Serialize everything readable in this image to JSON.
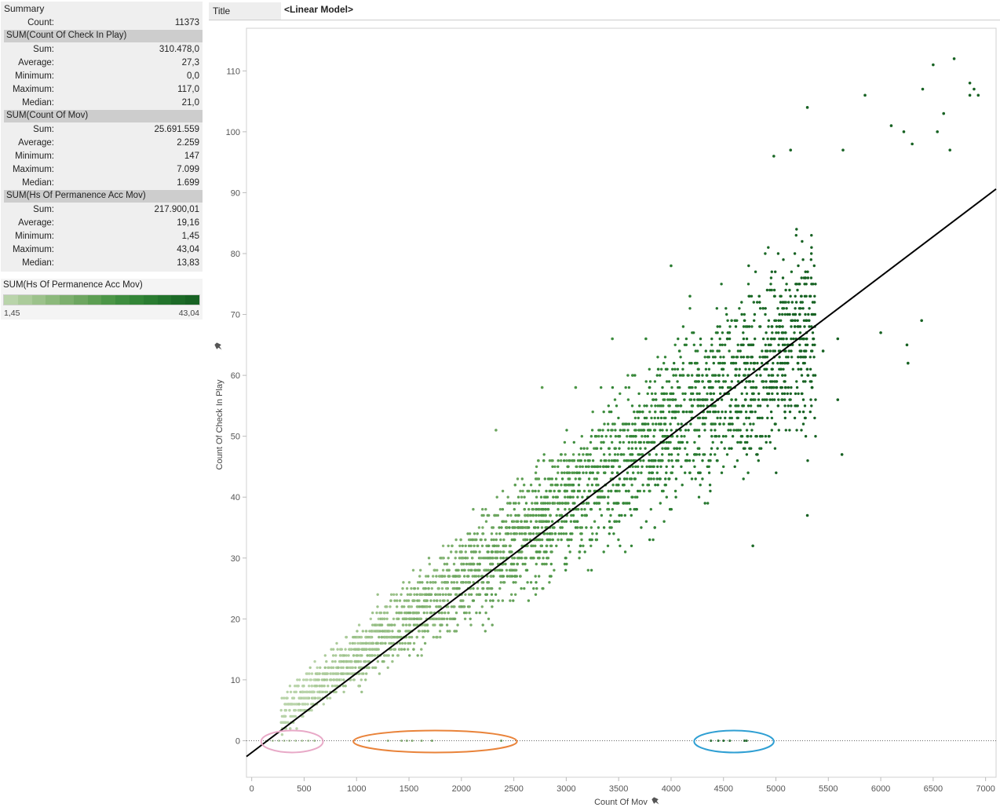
{
  "summary": {
    "title": "Summary",
    "count_label": "Count:",
    "count_value": "11373",
    "sections": [
      {
        "header": "SUM(Count Of Check In Play)",
        "rows": [
          [
            "Sum:",
            "310.478,0"
          ],
          [
            "Average:",
            "27,3"
          ],
          [
            "Minimum:",
            "0,0"
          ],
          [
            "Maximum:",
            "117,0"
          ],
          [
            "Median:",
            "21,0"
          ]
        ]
      },
      {
        "header": "SUM(Count Of Mov)",
        "rows": [
          [
            "Sum:",
            "25.691.559"
          ],
          [
            "Average:",
            "2.259"
          ],
          [
            "Minimum:",
            "147"
          ],
          [
            "Maximum:",
            "7.099"
          ],
          [
            "Median:",
            "1.699"
          ]
        ]
      },
      {
        "header": "SUM(Hs Of Permanence Acc Mov)",
        "rows": [
          [
            "Sum:",
            "217.900,01"
          ],
          [
            "Average:",
            "19,16"
          ],
          [
            "Minimum:",
            "1,45"
          ],
          [
            "Maximum:",
            "43,04"
          ],
          [
            "Median:",
            "13,83"
          ]
        ]
      }
    ]
  },
  "legend": {
    "title": "SUM(Hs Of Permanence Acc Mov)",
    "min_label": "1,45",
    "max_label": "43,04",
    "colors": [
      "#b9d4aa",
      "#abcb9a",
      "#9cc28b",
      "#8cb97b",
      "#7caf6d",
      "#6da660",
      "#5c9e52",
      "#4c9647",
      "#3e8d3f",
      "#338537",
      "#2a7c31",
      "#22732c",
      "#1c6a27",
      "#176223"
    ]
  },
  "title_bar": {
    "label": "Title",
    "value": "<Linear Model>"
  },
  "chart_data": {
    "type": "scatter",
    "xlabel": "Count Of Mov",
    "ylabel": "Count Of Check In Play",
    "xlim": [
      -50,
      7100
    ],
    "ylim": [
      -6,
      117
    ],
    "xticks": [
      "0",
      "500",
      "1000",
      "1500",
      "2000",
      "2500",
      "3000",
      "3500",
      "4000",
      "4500",
      "5000",
      "5500",
      "6000",
      "6500",
      "7000"
    ],
    "yticks": [
      "0",
      "10",
      "20",
      "30",
      "40",
      "50",
      "60",
      "70",
      "80",
      "90",
      "100",
      "110"
    ],
    "trend_line": {
      "type": "linear",
      "points": [
        [
          -50,
          -2.6
        ],
        [
          7100,
          90.6
        ]
      ]
    },
    "zero_reference_line": true,
    "n_points": 11373,
    "point_count_rendered": 3200,
    "color_field": "SUM(Hs Of Permanence Acc Mov)",
    "color_range": [
      1.45,
      43.04
    ],
    "outliers": [
      [
        6700,
        112
      ],
      [
        6500,
        111
      ],
      [
        6850,
        108
      ],
      [
        6890,
        107
      ],
      [
        6850,
        106
      ],
      [
        6930,
        106
      ],
      [
        5850,
        106
      ],
      [
        6400,
        107
      ],
      [
        5300,
        104
      ],
      [
        6600,
        103
      ],
      [
        6300,
        98
      ],
      [
        6540,
        100
      ],
      [
        6660,
        97
      ],
      [
        6100,
        101
      ],
      [
        6220,
        100
      ],
      [
        4980,
        96
      ],
      [
        5140,
        97
      ],
      [
        5640,
        97
      ],
      [
        4000,
        78
      ],
      [
        4180,
        73
      ],
      [
        3440,
        66
      ],
      [
        3760,
        66
      ],
      [
        2770,
        58
      ],
      [
        3090,
        58
      ],
      [
        2330,
        51
      ],
      [
        4780,
        32
      ],
      [
        5300,
        37
      ],
      [
        5630,
        47
      ],
      [
        6390,
        69
      ],
      [
        6250,
        65
      ],
      [
        6260,
        62
      ],
      [
        5590,
        66
      ],
      [
        5590,
        56
      ],
      [
        5450,
        64
      ],
      [
        6000,
        67
      ]
    ],
    "zero_points": {
      "groups": [
        {
          "x_range": [
            120,
            650
          ],
          "color": "#e8a9c7"
        },
        {
          "x_range": [
            1000,
            2500
          ],
          "color": "#e9833a"
        },
        {
          "x_range": [
            4250,
            4950
          ],
          "color": "#2f9fd3"
        }
      ],
      "values": [
        150,
        200,
        260,
        310,
        360,
        420,
        480,
        540,
        600,
        1120,
        1300,
        1430,
        1480,
        1530,
        1620,
        1720,
        2380,
        4380,
        4450,
        4500,
        4560,
        4700,
        4720
      ]
    }
  }
}
